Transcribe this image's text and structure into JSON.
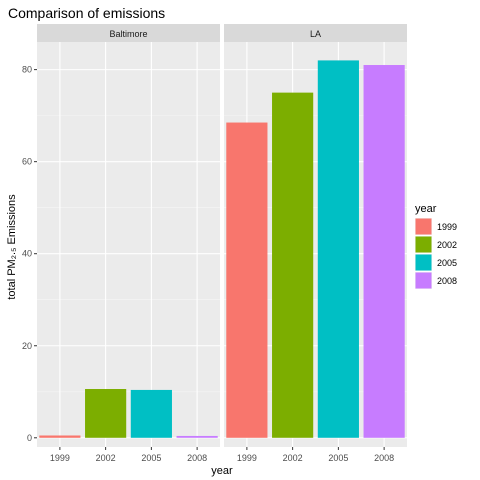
{
  "chart_data": {
    "type": "bar",
    "title": "Comparison of emissions",
    "xlabel": "year",
    "ylabel": "total PM₂.₅ Emissions",
    "ylim": [
      -2,
      86
    ],
    "yticks": [
      0,
      20,
      40,
      60,
      80
    ],
    "categories": [
      "1999",
      "2002",
      "2005",
      "2008"
    ],
    "legend": {
      "title": "year",
      "position": "right",
      "entries": [
        "1999",
        "2002",
        "2005",
        "2008"
      ]
    },
    "colors": {
      "1999": "#F8766D",
      "2002": "#7CAE00",
      "2005": "#00BFC4",
      "2008": "#C77CFF"
    },
    "panels": [
      {
        "name": "Baltimore",
        "values": [
          0.5,
          10.6,
          10.4,
          0.4
        ]
      },
      {
        "name": "LA",
        "values": [
          68.5,
          75.0,
          82.0,
          81.0
        ]
      }
    ],
    "grid": true
  }
}
